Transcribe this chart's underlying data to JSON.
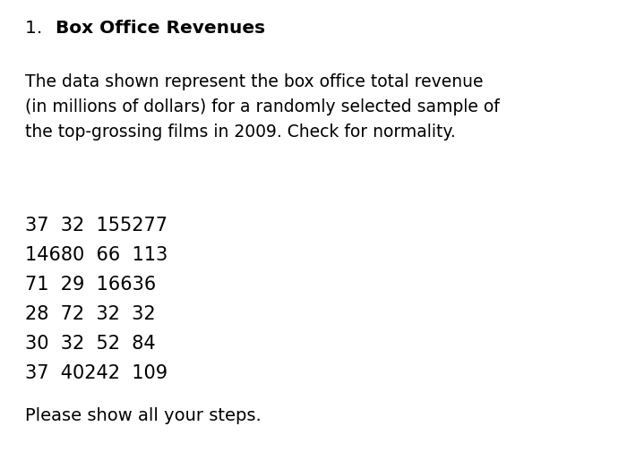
{
  "title_number": "1.",
  "title_bold": "Box Office Revenues",
  "body_text": "The data shown represent the box office total revenue\n(in millions of dollars) for a randomly selected sample of\nthe top-grossing films in 2009. Check for normality.",
  "data_lines": [
    "37  32  155277",
    "14680  66  113",
    "71  29  16636",
    "28  72  32  32",
    "30  32  52  84",
    "37  40242  109"
  ],
  "footer_text": "Please show all your steps.",
  "background_color": "#ffffff",
  "text_color": "#000000",
  "title_fontsize": 14.5,
  "body_fontsize": 13.5,
  "data_fontsize": 15,
  "footer_fontsize": 14
}
